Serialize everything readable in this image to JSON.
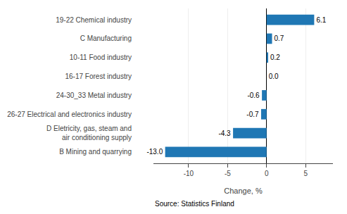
{
  "chart_data": {
    "type": "bar",
    "orientation": "horizontal",
    "categories": [
      "B Mining and quarrying",
      "D Eletricity, gas, steam and\nair conditioning supply",
      "26-27 Electrical and electronics industry",
      "24-30_33 Metal industry",
      "16-17 Forest industry",
      "10-11 Food industry",
      "C Manufacturing",
      "19-22 Chemical industry"
    ],
    "values": [
      -13.0,
      -4.3,
      -0.7,
      -0.6,
      0.0,
      0.2,
      0.7,
      6.1
    ],
    "value_labels": [
      "-13.0",
      "-4.3",
      "-0.7",
      "-0.6",
      "0.0",
      "0.2",
      "0.7",
      "6.1"
    ],
    "data_labels": true,
    "color": "#1f77b4",
    "x_label": "Change, %",
    "xlim": [
      -14.5,
      8.5
    ],
    "xticks": [
      -10,
      -5,
      0,
      5
    ],
    "grid": true,
    "annotations": [
      "Source: Statistics Finland"
    ]
  }
}
